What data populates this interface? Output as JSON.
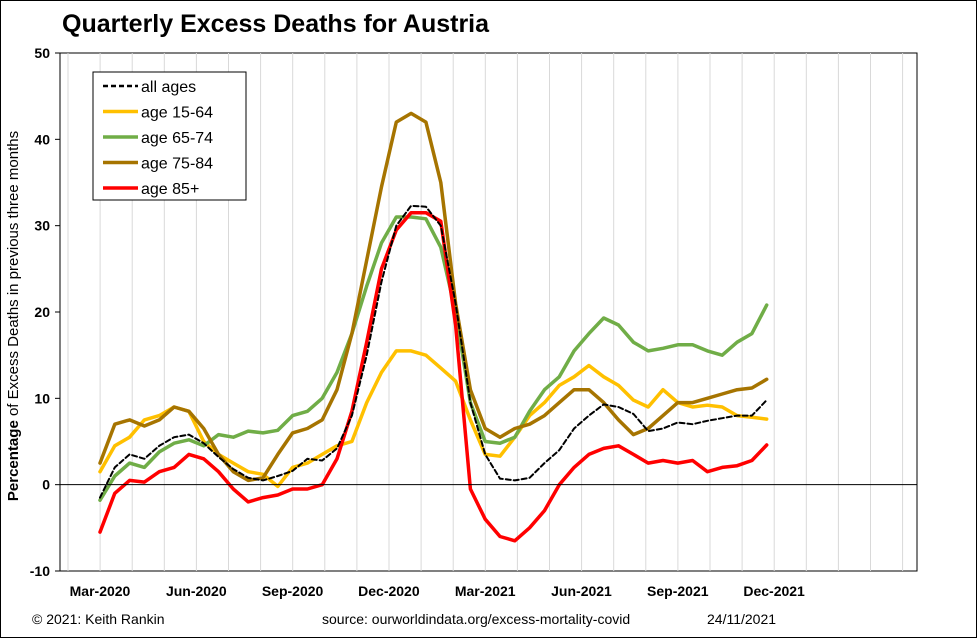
{
  "title": "Quarterly Excess Deaths for Austria",
  "footer": {
    "copyright": "© 2021: Keith Rankin",
    "source": "source:  ourworldindata.org/excess-mortality-covid",
    "date": "24/11/2021"
  },
  "chart_data": {
    "type": "line",
    "title": "Quarterly Excess Deaths for Austria",
    "ylabel_bold": "Percentage",
    "ylabel_rest": " of Excess Deaths in previous three months",
    "xlabel": "",
    "ylim": [
      -10,
      50
    ],
    "yticks": [
      -10,
      0,
      10,
      20,
      30,
      40,
      50
    ],
    "xtick_labels": [
      "Mar-2020",
      "Jun-2020",
      "Sep-2020",
      "Dec-2020",
      "Mar-2021",
      "Jun-2021",
      "Sep-2021",
      "Dec-2021"
    ],
    "x_unit": "weeks from start of March 2020",
    "xlim": [
      0,
      91
    ],
    "grid": "vertical",
    "legend_position": "top-left",
    "zero_line": true,
    "series": [
      {
        "name": "all ages",
        "color": "#000000",
        "dashed": true,
        "x": [
          0,
          2,
          4,
          6,
          8,
          10,
          12,
          14,
          16,
          18,
          20,
          22,
          24,
          26,
          28,
          30,
          32,
          34,
          36,
          38,
          40,
          42,
          44,
          46,
          48,
          50,
          52,
          54,
          56,
          58,
          60,
          62,
          64,
          66,
          68,
          70,
          72,
          74,
          76,
          78,
          80,
          82,
          84,
          86,
          88,
          90
        ],
        "y": [
          -1.5,
          2.0,
          3.5,
          3.0,
          4.5,
          5.5,
          5.8,
          4.8,
          3.2,
          1.8,
          0.8,
          0.5,
          1.0,
          1.6,
          3.0,
          2.8,
          4.2,
          8.0,
          15.0,
          23.5,
          30.0,
          32.3,
          32.2,
          30.0,
          21.0,
          9.5,
          3.5,
          0.7,
          0.5,
          0.8,
          2.5,
          4.0,
          6.5,
          8.0,
          9.3,
          9.0,
          8.2,
          6.2,
          6.5,
          7.2,
          7.0,
          7.4,
          7.7,
          8.0,
          8.0,
          9.8
        ]
      },
      {
        "name": "age 15-64",
        "color": "#ffc000",
        "dashed": false,
        "x": [
          0,
          2,
          4,
          6,
          8,
          10,
          12,
          14,
          16,
          18,
          20,
          22,
          24,
          26,
          28,
          30,
          32,
          34,
          36,
          38,
          40,
          42,
          44,
          46,
          48,
          50,
          52,
          54,
          56,
          58,
          60,
          62,
          64,
          66,
          68,
          70,
          72,
          74,
          76,
          78,
          80,
          82,
          84,
          86,
          88,
          90
        ],
        "y": [
          1.5,
          4.5,
          5.5,
          7.5,
          8.0,
          9.0,
          8.5,
          5.0,
          3.5,
          2.5,
          1.5,
          1.2,
          -0.2,
          2.0,
          2.5,
          3.5,
          4.5,
          5.0,
          9.5,
          13.0,
          15.5,
          15.5,
          15.0,
          13.5,
          12.0,
          7.5,
          3.5,
          3.3,
          5.5,
          8.0,
          9.5,
          11.5,
          12.5,
          13.8,
          12.5,
          11.5,
          9.8,
          9.0,
          11.0,
          9.5,
          9.0,
          9.2,
          9.0,
          8.0,
          7.8,
          7.6
        ]
      },
      {
        "name": "age 65-74",
        "color": "#70ad47",
        "dashed": false,
        "x": [
          0,
          2,
          4,
          6,
          8,
          10,
          12,
          14,
          16,
          18,
          20,
          22,
          24,
          26,
          28,
          30,
          32,
          34,
          36,
          38,
          40,
          42,
          44,
          46,
          48,
          50,
          52,
          54,
          56,
          58,
          60,
          62,
          64,
          66,
          68,
          70,
          72,
          74,
          76,
          78,
          80,
          82,
          84,
          86,
          88,
          90
        ],
        "y": [
          -1.8,
          1.0,
          2.5,
          2.0,
          3.8,
          4.8,
          5.2,
          4.5,
          5.8,
          5.5,
          6.2,
          6.0,
          6.3,
          8.0,
          8.5,
          10.0,
          13.0,
          17.5,
          23.0,
          28.0,
          31.0,
          31.0,
          30.8,
          27.5,
          20.0,
          9.5,
          5.0,
          4.8,
          5.5,
          8.5,
          11.0,
          12.5,
          15.5,
          17.5,
          19.3,
          18.5,
          16.5,
          15.5,
          15.8,
          16.2,
          16.2,
          15.5,
          15.0,
          16.5,
          17.5,
          20.8
        ]
      },
      {
        "name": "age 75-84",
        "color": "#a67400",
        "dashed": false,
        "x": [
          0,
          2,
          4,
          6,
          8,
          10,
          12,
          14,
          16,
          18,
          20,
          22,
          24,
          26,
          28,
          30,
          32,
          34,
          36,
          38,
          40,
          42,
          44,
          46,
          48,
          50,
          52,
          54,
          56,
          58,
          60,
          62,
          64,
          66,
          68,
          70,
          72,
          74,
          76,
          78,
          80,
          82,
          84,
          86,
          88,
          90
        ],
        "y": [
          2.5,
          7.0,
          7.5,
          6.8,
          7.5,
          9.0,
          8.5,
          6.5,
          3.5,
          1.5,
          0.5,
          0.8,
          3.5,
          6.0,
          6.5,
          7.5,
          11.0,
          17.5,
          26.0,
          34.5,
          42.0,
          43.0,
          42.0,
          35.0,
          21.0,
          11.0,
          6.5,
          5.5,
          6.5,
          7.0,
          8.0,
          9.5,
          11.0,
          11.0,
          9.5,
          7.5,
          5.8,
          6.5,
          8.0,
          9.5,
          9.5,
          10.0,
          10.5,
          11.0,
          11.2,
          12.2
        ]
      },
      {
        "name": "age 85+",
        "color": "#ff0000",
        "dashed": false,
        "x": [
          0,
          2,
          4,
          6,
          8,
          10,
          12,
          14,
          16,
          18,
          20,
          22,
          24,
          26,
          28,
          30,
          32,
          34,
          36,
          38,
          40,
          42,
          44,
          46,
          48,
          50,
          52,
          54,
          56,
          58,
          60,
          62,
          64,
          66,
          68,
          70,
          72,
          74,
          76,
          78,
          80,
          82,
          84,
          86,
          88,
          90
        ],
        "y": [
          -5.5,
          -1.0,
          0.5,
          0.3,
          1.5,
          2.0,
          3.5,
          3.0,
          1.5,
          -0.5,
          -2.0,
          -1.5,
          -1.2,
          -0.5,
          -0.5,
          0.0,
          3.0,
          8.5,
          16.5,
          25.0,
          29.5,
          31.5,
          31.5,
          30.5,
          18.5,
          -0.5,
          -4.0,
          -6.0,
          -6.5,
          -5.0,
          -3.0,
          0.0,
          2.0,
          3.5,
          4.2,
          4.5,
          3.5,
          2.5,
          2.8,
          2.5,
          2.8,
          1.5,
          2.0,
          2.2,
          2.8,
          4.6
        ]
      }
    ]
  }
}
